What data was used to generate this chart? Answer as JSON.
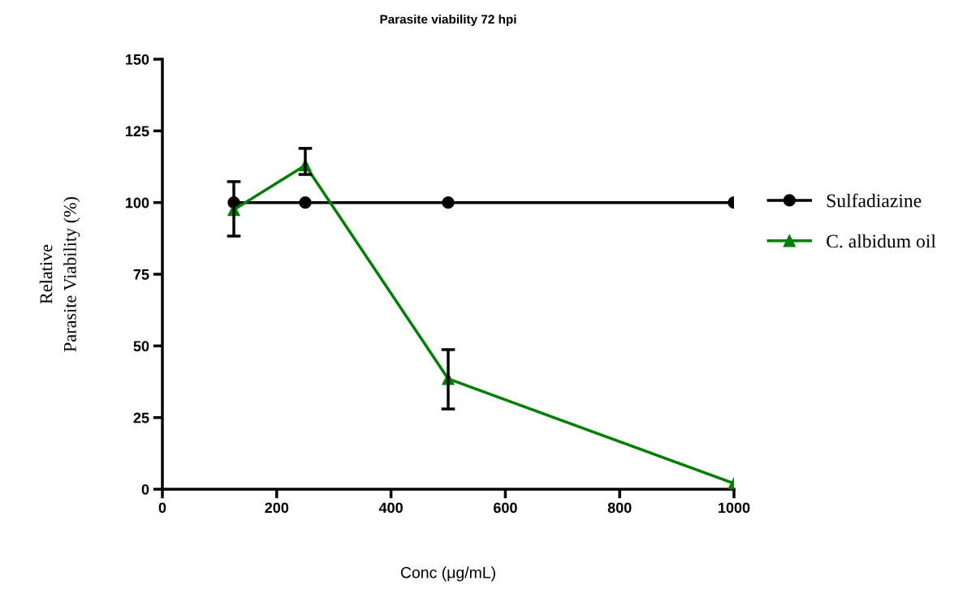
{
  "chart_data": {
    "type": "line",
    "title": "Parasite viability 72 hpi",
    "xlabel": "Conc (μg/mL)",
    "ylabel": "Relative\nParasite Viability (%)",
    "x": [
      125,
      250,
      500,
      1000
    ],
    "series": [
      {
        "name": "Sulfadiazine",
        "color": "#000000",
        "marker": "circle",
        "values": [
          100,
          100,
          100,
          100
        ]
      },
      {
        "name": "C. albidum oil",
        "color": "#008000",
        "marker": "triangle",
        "values": [
          97.5,
          113,
          38.5,
          2
        ],
        "errors": [
          [
            88.3,
            107.3
          ],
          [
            109.8,
            118.9
          ],
          [
            28,
            48.7
          ],
          null
        ]
      }
    ],
    "xlim": [
      0,
      1000
    ],
    "xticks": [
      0,
      200,
      400,
      600,
      800,
      1000
    ],
    "ylim": [
      0,
      150
    ],
    "yticks": [
      0,
      25,
      50,
      75,
      100,
      125,
      150
    ],
    "grid": false,
    "legend": "right",
    "line_style": "solid"
  }
}
